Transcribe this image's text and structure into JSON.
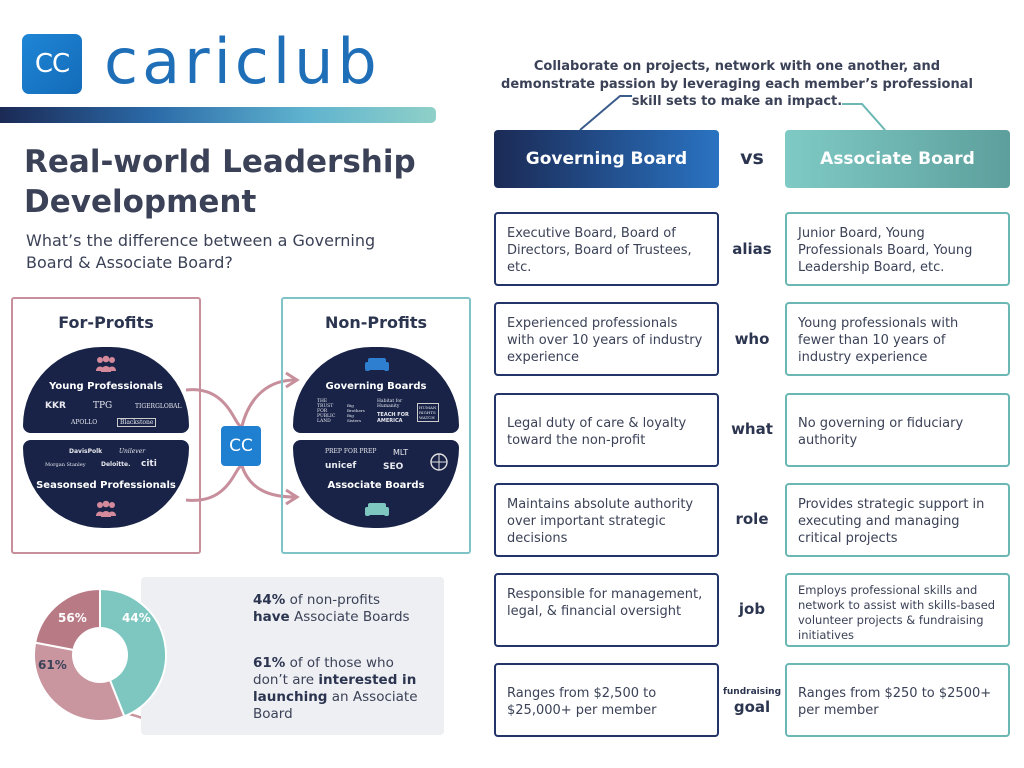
{
  "brand": {
    "logo_text": "CC",
    "name": "cariclub"
  },
  "title": "Real-world Leadership Development",
  "subtitle": "What’s the difference between a Governing Board & Associate Board?",
  "diagram": {
    "for_profits": {
      "title": "For-Profits",
      "top_label": "Young Professionals",
      "top_brands": [
        "KKR",
        "TPG",
        "TIGERGLOBAL",
        "APOLLO",
        "Blackstone"
      ],
      "bottom_label": "Seasonsed Professionals",
      "bottom_brands": [
        "DavisPolk",
        "Unilever",
        "Morgan Stanley",
        "Deloitte.",
        "citi"
      ]
    },
    "center_logo": "CC",
    "non_profits": {
      "title": "Non-Profits",
      "top_label": "Governing Boards",
      "top_brands": [
        "THE TRUST FOR PUBLIC LAND",
        "Big Brothers Big Sisters",
        "Habitat for Humanity",
        "TEACH FOR AMERICA",
        "HUMAN RIGHTS WATCH"
      ],
      "bottom_label": "Associate Boards",
      "bottom_brands": [
        "PREP FOR PREP",
        "MLT",
        "unicef",
        "SEO",
        "UN"
      ]
    }
  },
  "pie": {
    "segments": [
      {
        "label": "44%",
        "value": 44,
        "color": "#7ec7c1"
      },
      {
        "label": "61%",
        "value": 34,
        "color": "#c9959f"
      },
      {
        "label": "56%",
        "value": 22,
        "color": "#b87a85"
      }
    ],
    "stat1_num": "44%",
    "stat1_rest": " of non-profits",
    "stat1_bold": "have",
    "stat1_end": " Associate Boards",
    "stat2_num": "61%",
    "stat2_rest": " of of those who don’t are ",
    "stat2_bold": "interested in launching",
    "stat2_end": " an Associate Board"
  },
  "intro": "Collaborate on projects, network with one another, and demonstrate passion by leveraging each member’s professional skill sets to make an impact.",
  "header": {
    "gov": "Governing Board",
    "vs": "vs",
    "assoc": "Associate Board"
  },
  "rows": [
    {
      "label": "alias",
      "gov": "Executive Board, Board of Directors, Board of Trustees, etc.",
      "assoc": "Junior Board, Young Professionals Board, Young Leadership Board, etc."
    },
    {
      "label": "who",
      "gov": "Experienced professionals with over 10 years of industry experience",
      "assoc": "Young professionals with fewer than 10 years of industry experience"
    },
    {
      "label": "what",
      "gov": "Legal duty of care & loyalty toward the non-profit",
      "assoc": "No governing or fiduciary authority"
    },
    {
      "label": "role",
      "gov": "Maintains absolute authority over important strategic decisions",
      "assoc": "Provides strategic support in executing and managing critical projects"
    },
    {
      "label": "job",
      "gov": "Responsible for management, legal, & financial oversight",
      "assoc": "Employs professional skills and network to assist with skills-based volunteer projects & fundraising initiatives"
    },
    {
      "label_top": "fundraising",
      "label": "goal",
      "gov": "Ranges from $2,500 to $25,000+ per member",
      "assoc": "Ranges from $250 to $2500+ per member"
    }
  ]
}
